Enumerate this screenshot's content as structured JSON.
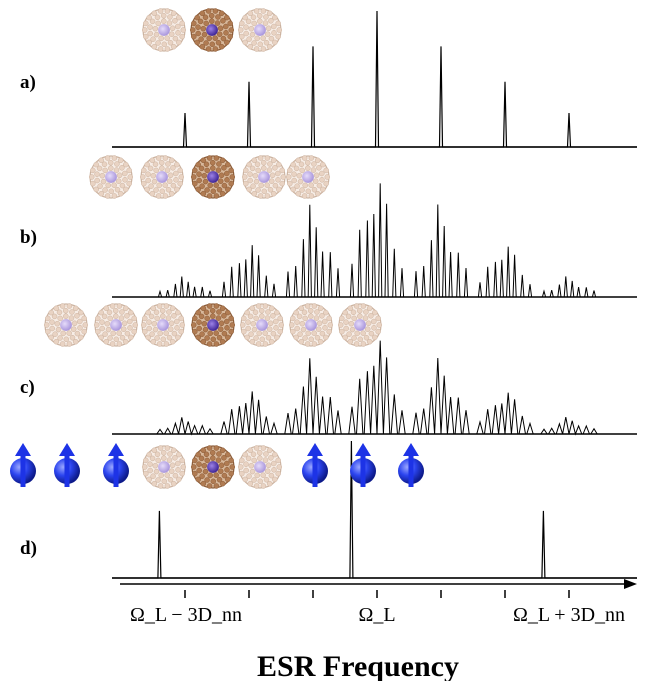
{
  "chart_data": [
    {
      "type": "line",
      "panel_label": "a)",
      "molecules": [
        "empty",
        "endohedral",
        "empty"
      ],
      "peaks": [
        {
          "x": -3,
          "height": 0.25
        },
        {
          "x": -2,
          "height": 0.48
        },
        {
          "x": -1,
          "height": 0.74
        },
        {
          "x": 0,
          "height": 1.0
        },
        {
          "x": 1,
          "height": 0.74
        },
        {
          "x": 2,
          "height": 0.48
        },
        {
          "x": 3,
          "height": 0.25
        }
      ]
    },
    {
      "type": "line",
      "panel_label": "b)",
      "molecules": [
        "empty",
        "empty",
        "endohedral",
        "empty",
        "empty"
      ],
      "spectrum": "dense multiplet, 7 groups centred at integer multiples of D_nn, max at Ω_L"
    },
    {
      "type": "line",
      "panel_label": "c)",
      "molecules": [
        "empty",
        "empty",
        "empty",
        "endohedral",
        "empty",
        "empty",
        "empty"
      ],
      "spectrum": "broadened dense multiplet, 7 groups, max at Ω_L"
    },
    {
      "type": "line",
      "panel_label": "d)",
      "molecules": [
        "spin",
        "spin",
        "spin",
        "empty",
        "endohedral",
        "empty",
        "spin",
        "spin",
        "spin"
      ],
      "peaks": [
        {
          "x": -3.4,
          "height": 0.49
        },
        {
          "x": -0.4,
          "height": 1.0
        },
        {
          "x": 2.6,
          "height": 0.49
        }
      ]
    }
  ],
  "axis": {
    "xlabel": "ESR Frequency",
    "tick_labels": [
      {
        "x": -3,
        "text": "Ω_L − 3D_nn"
      },
      {
        "x": 0,
        "text": "Ω_L"
      },
      {
        "x": 3,
        "text": "Ω_L + 3D_nn"
      }
    ],
    "minor_ticks": [
      -3,
      -2,
      -1,
      0,
      1,
      2,
      3
    ]
  },
  "colors": {
    "line": "#000000",
    "cage_empty": "#e9d3c3",
    "cage_endohedral": "#b07b52",
    "atom": "#c7b7ea",
    "atom_endo": "#6b4cc0",
    "spin": "#1d33e6"
  }
}
